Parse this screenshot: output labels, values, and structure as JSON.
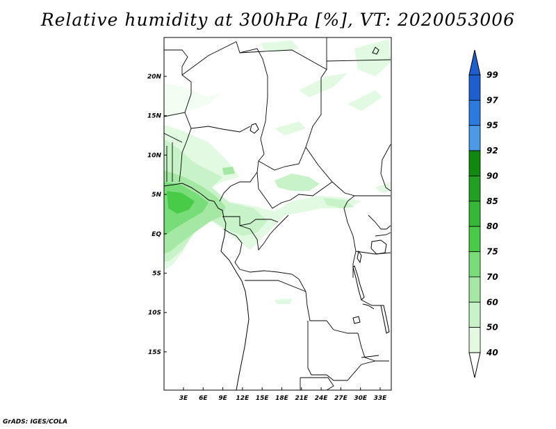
{
  "title": "Relative humidity at 300hPa [%], VT: 2020053006",
  "credit": "GrADS: IGES/COLA",
  "map": {
    "lat_ticks": [
      "20N",
      "15N",
      "10N",
      "5N",
      "EQ",
      "5S",
      "10S",
      "15S"
    ],
    "lon_ticks": [
      "3E",
      "6E",
      "9E",
      "12E",
      "15E",
      "18E",
      "21E",
      "24E",
      "27E",
      "30E",
      "33E"
    ]
  },
  "colorbar": {
    "levels": [
      "99",
      "97",
      "95",
      "92",
      "90",
      "85",
      "80",
      "75",
      "70",
      "60",
      "50",
      "40"
    ],
    "colors": [
      "#1e5fd0",
      "#2a7ae0",
      "#4a9ae8",
      "#0f8a0f",
      "#22a022",
      "#35b835",
      "#48cc48",
      "#78dc78",
      "#a4e8a4",
      "#c8f2c8",
      "#e2fae2",
      "#f2fef2"
    ]
  }
}
